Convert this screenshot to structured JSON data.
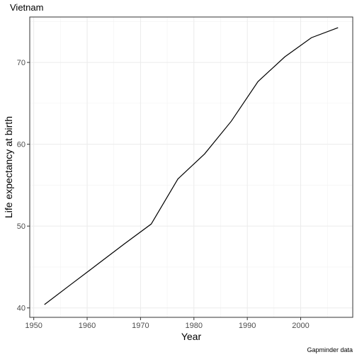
{
  "chart_data": {
    "type": "line",
    "title": "Vietnam",
    "xlabel": "Year",
    "ylabel": "Life expectancy at birth",
    "caption": "Gapminder data",
    "xlim": [
      1949.25,
      2009.75
    ],
    "ylim": [
      38.85,
      75.55
    ],
    "x_ticks": [
      1950,
      1960,
      1970,
      1980,
      1990,
      2000
    ],
    "y_ticks": [
      40,
      50,
      60,
      70
    ],
    "grid": true,
    "legend": "none",
    "line_color": "#000000",
    "series": [
      {
        "x": [
          1952,
          1957,
          1962,
          1967,
          1972,
          1977,
          1982,
          1987,
          1992,
          1997,
          2002,
          2007
        ],
        "y": [
          40.41,
          42.89,
          45.36,
          47.84,
          50.25,
          55.76,
          58.82,
          62.82,
          67.66,
          70.67,
          73.02,
          74.25
        ]
      }
    ]
  }
}
